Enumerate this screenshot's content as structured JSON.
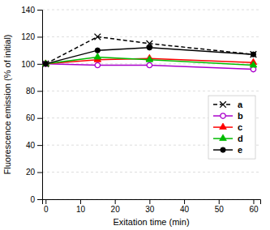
{
  "chart_data": {
    "type": "line",
    "x_label": "Exitation time (min)",
    "y_label": "Fluorescence emission (% of initial)",
    "x": [
      0,
      15,
      30,
      60
    ],
    "series": [
      {
        "name": "a",
        "color": "#000000",
        "marker": "x",
        "line_style": "dashed",
        "values": [
          100,
          120,
          115,
          107
        ]
      },
      {
        "name": "b",
        "color": "#aa00cc",
        "marker": "circle-open",
        "line_style": "solid",
        "values": [
          100,
          99,
          99,
          96
        ]
      },
      {
        "name": "c",
        "color": "#ff0000",
        "marker": "triangle",
        "line_style": "solid",
        "values": [
          100,
          103,
          104,
          101
        ]
      },
      {
        "name": "d",
        "color": "#00bb00",
        "marker": "triangle",
        "line_style": "solid",
        "values": [
          100,
          105,
          103,
          99
        ]
      },
      {
        "name": "e",
        "color": "#000000",
        "marker": "circle",
        "line_style": "solid",
        "values": [
          100,
          110,
          112,
          107
        ]
      }
    ],
    "xlim": [
      -1,
      62
    ],
    "ylim": [
      0,
      140
    ],
    "xticks": [
      0,
      10,
      20,
      30,
      40,
      50,
      60
    ],
    "yticks": [
      0,
      20,
      40,
      60,
      80,
      100,
      120,
      140
    ],
    "grid": true,
    "legend": "right"
  }
}
